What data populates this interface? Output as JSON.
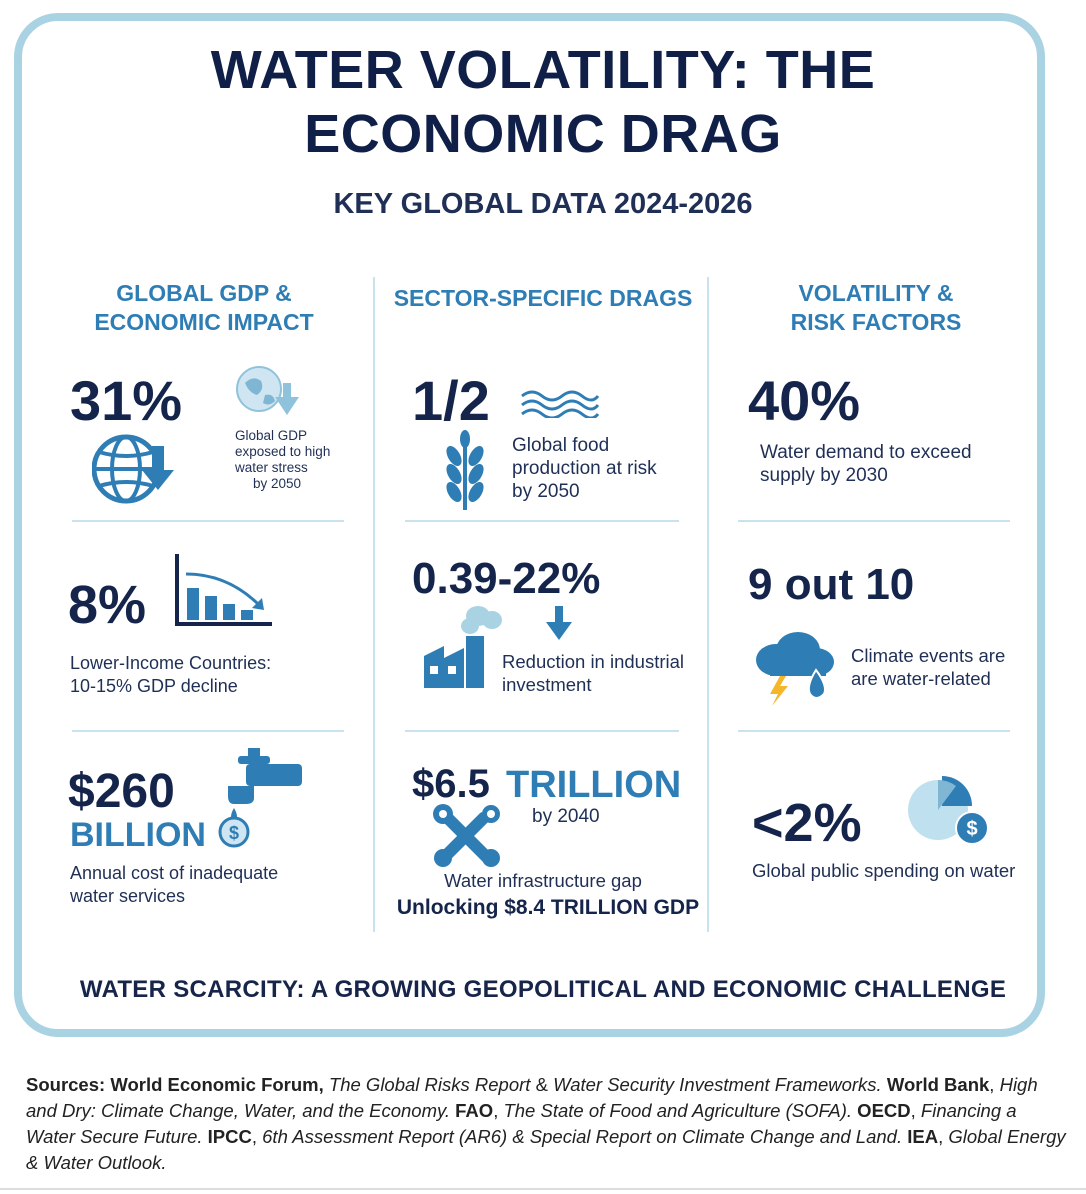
{
  "title_line1": "WATER VOLATILITY: THE",
  "title_line2": "ECONOMIC DRAG",
  "subtitle": "KEY GLOBAL DATA 2024-2026",
  "columns": {
    "gdp": {
      "head1": "GLOBAL GDP &",
      "head2": "ECONOMIC IMPACT",
      "stat1": {
        "value": "31%",
        "l1": "Global GDP",
        "l2": "exposed to high",
        "l3": "water stress",
        "l4": "by 2050"
      },
      "stat2": {
        "value": "8%",
        "l1": "Lower-Income Countries:",
        "l2": "10-15% GDP decline"
      },
      "stat3": {
        "value": "$260",
        "value2": "BILLION",
        "l1": "Annual cost of inadequate",
        "l2": "water services"
      }
    },
    "sector": {
      "head1": "SECTOR-SPECIFIC DRAGS",
      "stat1": {
        "value": "1/2",
        "l1": "Global food",
        "l2": "production at risk",
        "l3": "by 2050"
      },
      "stat2": {
        "value": "0.39-22%",
        "l1": "Reduction in industrial",
        "l2": "investment"
      },
      "stat3": {
        "value": "$6.5",
        "value2": "TRILLION",
        "l1": "by 2040",
        "l2": "Water infrastructure gap",
        "l3": "Unlocking $8.4 TRILLION GDP"
      }
    },
    "risk": {
      "head1": "VOLATILITY &",
      "head2": "RISK FACTORS",
      "stat1": {
        "value": "40%",
        "l1": "Water demand to exceed",
        "l2": "supply by 2030"
      },
      "stat2": {
        "value": "9 out 10",
        "l1": "Climate events are",
        "l2": "are water-related"
      },
      "stat3": {
        "value": "<2%",
        "l1": "Global public spending on water"
      }
    }
  },
  "footer": "WATER SCARCITY: A GROWING GEOPOLITICAL AND ECONOMIC CHALLENGE",
  "sources": {
    "s0": "Sources: ",
    "s1": "World Economic Forum,",
    "s2": " The Global Risks Report",
    "s3": " & ",
    "s4": "Water Security Investment Frameworks.",
    "s5": " World Bank",
    "s6": ", ",
    "s7": "High and Dry: Climate Change, Water, and the Economy.",
    "s8": " FAO",
    "s9": ", ",
    "s10": "The State of Food and Agriculture (SOFA).",
    "s11": " OECD",
    "s12": ", ",
    "s13": "Financing a Water Secure Future.",
    "s14": " IPCC",
    "s15": ", ",
    "s16": "6th Assessment Report (AR6) & Special Report on Climate Change and Land.",
    "s17": " IEA",
    "s18": ", ",
    "s19": "Global Energy & Water Outlook."
  },
  "colors": {
    "navy": "#15244a",
    "accent": "#2f7db5",
    "light": "#a9d3e2"
  },
  "icons": [
    "globe-icon",
    "down-arrow-icon",
    "bar-chart-decline-icon",
    "faucet-icon",
    "coin-icon",
    "waves-icon",
    "wheat-icon",
    "factory-icon",
    "wrench-icon",
    "storm-cloud-icon",
    "pie-chart-coin-icon"
  ]
}
